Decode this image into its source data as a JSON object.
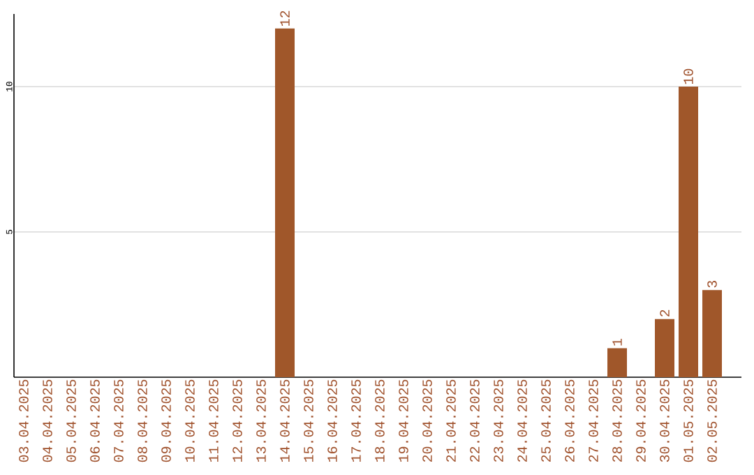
{
  "chart_data": {
    "type": "bar",
    "categories": [
      "03.04.2025",
      "04.04.2025",
      "05.04.2025",
      "06.04.2025",
      "07.04.2025",
      "08.04.2025",
      "09.04.2025",
      "10.04.2025",
      "11.04.2025",
      "12.04.2025",
      "13.04.2025",
      "14.04.2025",
      "15.04.2025",
      "16.04.2025",
      "17.04.2025",
      "18.04.2025",
      "19.04.2025",
      "20.04.2025",
      "21.04.2025",
      "22.04.2025",
      "23.04.2025",
      "24.04.2025",
      "25.04.2025",
      "26.04.2025",
      "27.04.2025",
      "28.04.2025",
      "29.04.2025",
      "30.04.2025",
      "01.05.2025",
      "02.05.2025"
    ],
    "values": [
      0,
      0,
      0,
      0,
      0,
      0,
      0,
      0,
      0,
      0,
      0,
      12,
      0,
      0,
      0,
      0,
      0,
      0,
      0,
      0,
      0,
      0,
      0,
      0,
      0,
      1,
      0,
      2,
      10,
      3
    ],
    "value_labels": [
      null,
      null,
      null,
      null,
      null,
      null,
      null,
      null,
      null,
      null,
      null,
      "12",
      null,
      null,
      null,
      null,
      null,
      null,
      null,
      null,
      null,
      null,
      null,
      null,
      null,
      "1",
      null,
      "2",
      "10",
      "3"
    ],
    "color": "#a0572a",
    "ylim": [
      0,
      12.5
    ],
    "yticks": [
      5,
      10
    ],
    "grid": "y"
  }
}
